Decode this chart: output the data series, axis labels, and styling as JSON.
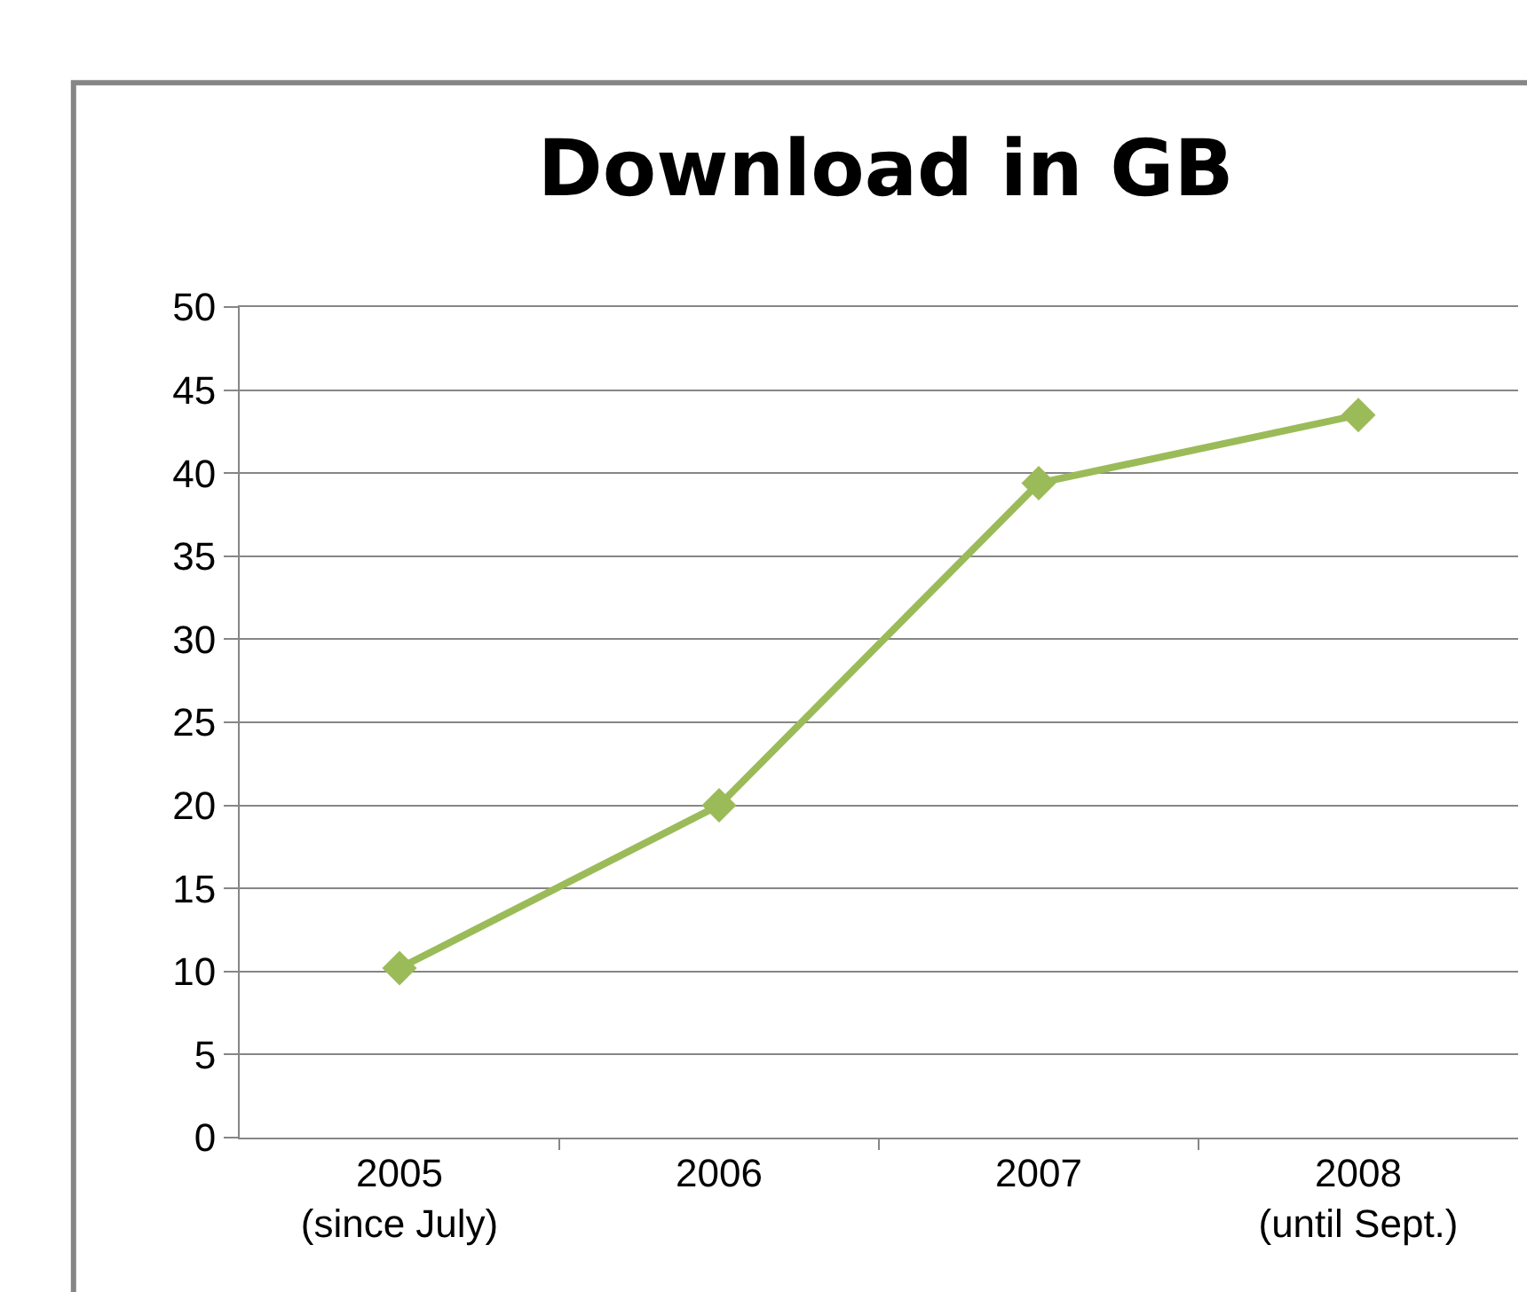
{
  "chart_data": {
    "type": "line",
    "title": "Download in GB",
    "categories": [
      "2005\n(since July)",
      "2006",
      "2007",
      "2008\n(until Sept.)"
    ],
    "series": [
      {
        "color": "#9bbb59",
        "values": [
          10.2,
          20,
          39.4,
          43.5
        ]
      }
    ],
    "ylim": [
      0,
      50
    ],
    "yticks": [
      0,
      5,
      10,
      15,
      20,
      25,
      30,
      35,
      40,
      45,
      50
    ],
    "grid": "y",
    "marker": "diamond",
    "line_style": "solid"
  }
}
